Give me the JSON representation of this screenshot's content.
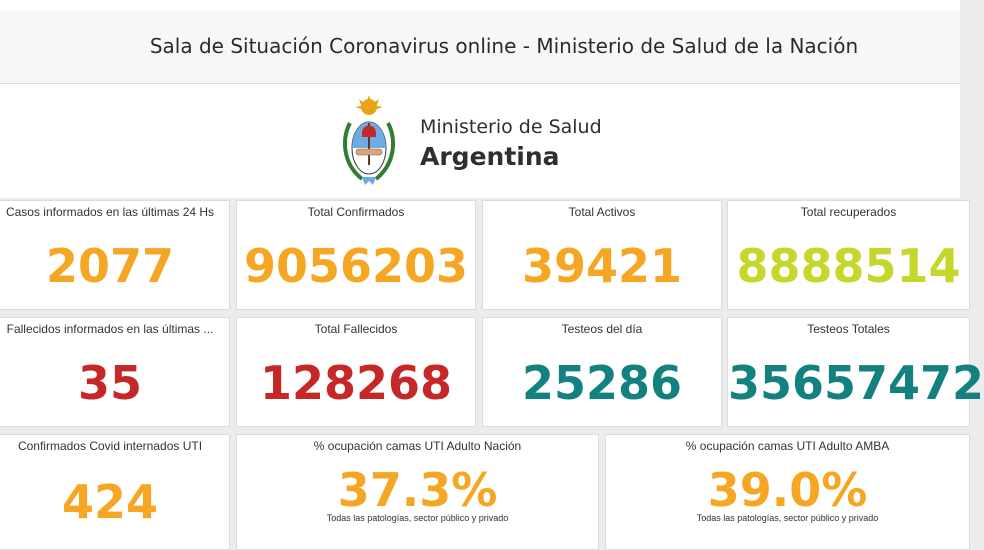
{
  "header": {
    "title": "Sala de Situación Coronavirus online - Ministerio de Salud de la Nación"
  },
  "logo": {
    "line1": "Ministerio de Salud",
    "line2": "Argentina",
    "emblem_icon": "argentina-coat-of-arms-icon"
  },
  "colors": {
    "orange": "#f5a623",
    "yellow": "#c7d62b",
    "red": "#c62828",
    "teal": "#12817f"
  },
  "cards": {
    "casos_24h": {
      "label": "Casos informados en las últimas 24 Hs",
      "value": "2077"
    },
    "total_confirmados": {
      "label": "Total Confirmados",
      "value": "9056203"
    },
    "total_activos": {
      "label": "Total Activos",
      "value": "39421"
    },
    "total_recuperados": {
      "label": "Total recuperados",
      "value": "8888514"
    },
    "fallecidos_24h": {
      "label": "Fallecidos informados en las últimas ...",
      "value": "35"
    },
    "total_fallecidos": {
      "label": "Total Fallecidos",
      "value": "128268"
    },
    "testeos_dia": {
      "label": "Testeos del día",
      "value": "25286"
    },
    "testeos_totales": {
      "label": "Testeos Totales",
      "value": "35657472"
    },
    "internados_uti": {
      "label": "Confirmados Covid internados UTI",
      "value": "424"
    },
    "ocupacion_nacion": {
      "label": "% ocupación camas UTI Adulto Nación",
      "value": "37.3%",
      "note": "Todas las patologías, sector público y privado"
    },
    "ocupacion_amba": {
      "label": "% ocupación camas UTI Adulto AMBA",
      "value": "39.0%",
      "note": "Todas las patologías, sector público y privado"
    }
  }
}
